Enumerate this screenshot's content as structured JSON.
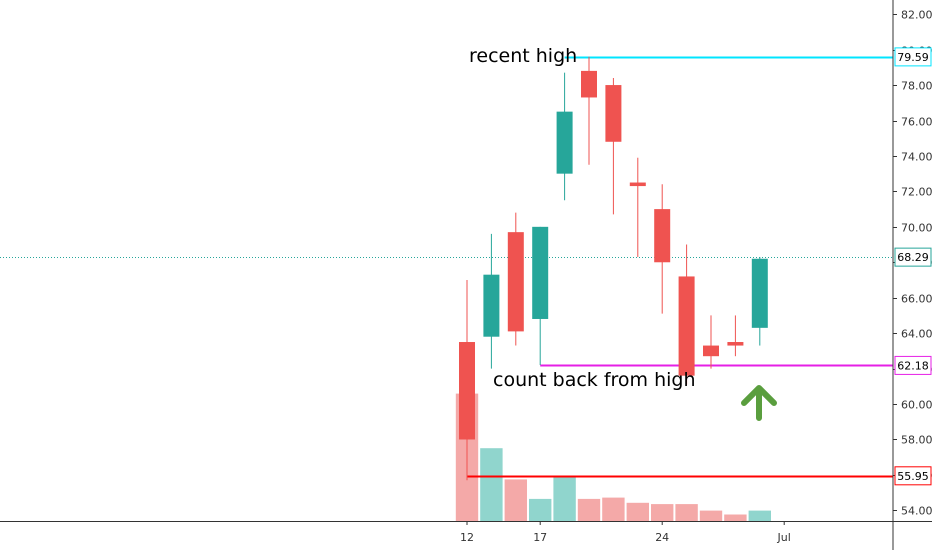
{
  "colors": {
    "up": "#26a69a",
    "down": "#ef5350",
    "vol_up": "#90d5cd",
    "vol_down": "#f4a9a8",
    "cyan": "#00e5ff",
    "magenta": "#e61fe6",
    "red_line": "#ff0000",
    "last_price": "#26a69a",
    "arrow": "#5a9e3e",
    "axis": "#333333"
  },
  "chart_data": {
    "type": "candlestick",
    "ylim": [
      53.4,
      82.8
    ],
    "y_ticks": [
      54,
      56,
      58,
      60,
      62,
      64,
      66,
      68,
      70,
      72,
      74,
      76,
      78,
      80,
      82
    ],
    "y_tick_labels": [
      "54.00",
      "56.00",
      "58.00",
      "60.00",
      "62.00",
      "64.00",
      "66.00",
      "68.00",
      "70.00",
      "72.00",
      "74.00",
      "76.00",
      "78.00",
      "80.00",
      "82.00"
    ],
    "x_ticks": [
      {
        "label": "12",
        "index": 0
      },
      {
        "label": "17",
        "index": 3
      },
      {
        "label": "24",
        "index": 8
      },
      {
        "label": "Jul",
        "index": 13
      }
    ],
    "candles": [
      {
        "o": 63.5,
        "h": 67.0,
        "l": 55.7,
        "c": 58.0
      },
      {
        "o": 63.8,
        "h": 69.6,
        "l": 62.0,
        "c": 67.3
      },
      {
        "o": 69.7,
        "h": 70.8,
        "l": 63.3,
        "c": 64.1
      },
      {
        "o": 64.8,
        "h": 70.0,
        "l": 62.2,
        "c": 70.0
      },
      {
        "o": 73.0,
        "h": 78.7,
        "l": 71.5,
        "c": 76.5
      },
      {
        "o": 78.8,
        "h": 79.6,
        "l": 73.5,
        "c": 77.3
      },
      {
        "o": 78.0,
        "h": 78.4,
        "l": 70.7,
        "c": 74.8
      },
      {
        "o": 72.5,
        "h": 73.9,
        "l": 68.3,
        "c": 72.3
      },
      {
        "o": 71.0,
        "h": 72.4,
        "l": 65.1,
        "c": 68.0
      },
      {
        "o": 67.2,
        "h": 69.0,
        "l": 61.1,
        "c": 61.6
      },
      {
        "o": 63.3,
        "h": 65.0,
        "l": 62.0,
        "c": 62.7
      },
      {
        "o": 63.5,
        "h": 65.0,
        "l": 62.7,
        "c": 63.3
      },
      {
        "o": 64.3,
        "h": 68.3,
        "l": 63.3,
        "c": 68.2
      }
    ],
    "volume": [
      {
        "dir": "down",
        "rel": 0.98
      },
      {
        "dir": "up",
        "rel": 0.56
      },
      {
        "dir": "down",
        "rel": 0.32
      },
      {
        "dir": "up",
        "rel": 0.17
      },
      {
        "dir": "up",
        "rel": 0.35
      },
      {
        "dir": "down",
        "rel": 0.17
      },
      {
        "dir": "down",
        "rel": 0.18
      },
      {
        "dir": "down",
        "rel": 0.14
      },
      {
        "dir": "down",
        "rel": 0.13
      },
      {
        "dir": "down",
        "rel": 0.13
      },
      {
        "dir": "down",
        "rel": 0.08
      },
      {
        "dir": "down",
        "rel": 0.05
      },
      {
        "dir": "up",
        "rel": 0.08
      }
    ],
    "levels": [
      {
        "name": "recent-high-line",
        "value": 79.59,
        "label": "79.59",
        "color": "cyan",
        "from_index": 4,
        "style": "solid"
      },
      {
        "name": "last-price-line",
        "value": 68.29,
        "label": "68.29",
        "color": "last_price",
        "from_index": -99,
        "style": "dotted"
      },
      {
        "name": "count-back-line",
        "value": 62.18,
        "label": "62.18",
        "color": "magenta",
        "from_index": 3,
        "style": "solid"
      },
      {
        "name": "support-line",
        "value": 55.95,
        "label": "55.95",
        "color": "red_line",
        "from_index": 0,
        "style": "solid"
      }
    ],
    "annotations": [
      {
        "name": "recent-high-label",
        "text": "recent high"
      },
      {
        "name": "count-back-label",
        "text": "count back from high"
      }
    ]
  }
}
